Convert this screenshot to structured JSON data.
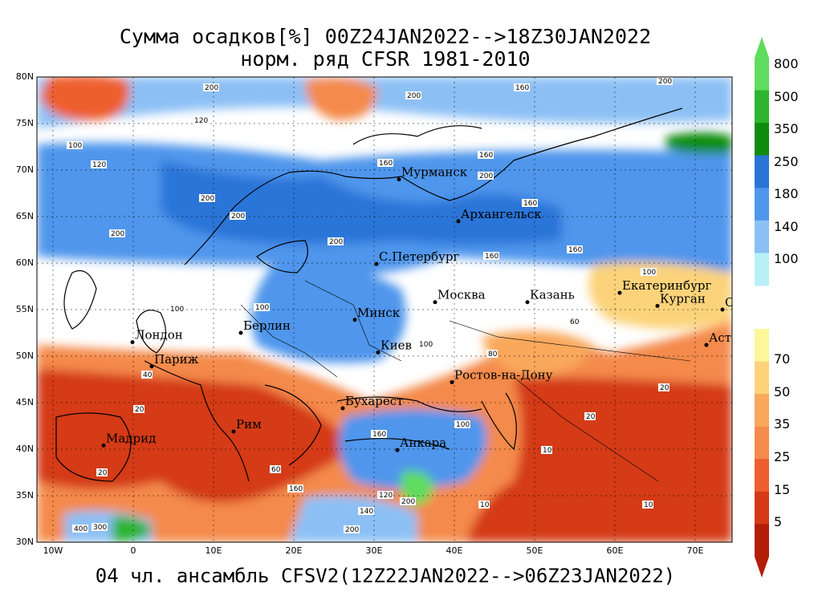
{
  "title": {
    "line1": "Сумма осадков[%] 00Z24JAN2022-->18Z30JAN2022",
    "line2": "норм. ряд CFSR 1981-2010"
  },
  "footer": "04 чл. ансамбль CFSV2(12Z22JAN2022-->06Z23JAN2022)",
  "map": {
    "lat_labels": [
      "80N",
      "75N",
      "70N",
      "65N",
      "60N",
      "55N",
      "50N",
      "45N",
      "40N",
      "35N",
      "30N"
    ],
    "lon_labels": [
      "10W",
      "0",
      "10E",
      "20E",
      "30E",
      "40E",
      "50E",
      "60E",
      "70E"
    ],
    "cities": [
      {
        "name": "Мурманск",
        "lon": 33.1,
        "lat": 69.0
      },
      {
        "name": "Архангельск",
        "lon": 40.5,
        "lat": 64.5
      },
      {
        "name": "С.Петербург",
        "lon": 30.3,
        "lat": 59.9
      },
      {
        "name": "Москва",
        "lon": 37.6,
        "lat": 55.8
      },
      {
        "name": "Казань",
        "lon": 49.1,
        "lat": 55.8
      },
      {
        "name": "Екатеринбург",
        "lon": 60.6,
        "lat": 56.8
      },
      {
        "name": "Курган",
        "lon": 65.3,
        "lat": 55.4
      },
      {
        "name": "Омск",
        "lon": 73.4,
        "lat": 55.0
      },
      {
        "name": "Астана",
        "lon": 71.4,
        "lat": 51.2
      },
      {
        "name": "Минск",
        "lon": 27.6,
        "lat": 53.9
      },
      {
        "name": "Берлин",
        "lon": 13.4,
        "lat": 52.5
      },
      {
        "name": "Лондон",
        "lon": -0.1,
        "lat": 51.5
      },
      {
        "name": "Париж",
        "lon": 2.3,
        "lat": 48.9
      },
      {
        "name": "Киев",
        "lon": 30.5,
        "lat": 50.4
      },
      {
        "name": "Ростов-на-Дону",
        "lon": 39.7,
        "lat": 47.2
      },
      {
        "name": "Бухарест",
        "lon": 26.1,
        "lat": 44.4
      },
      {
        "name": "Рим",
        "lon": 12.5,
        "lat": 41.9
      },
      {
        "name": "Мадрид",
        "lon": -3.7,
        "lat": 40.4
      },
      {
        "name": "Анкара",
        "lon": 32.9,
        "lat": 39.9
      }
    ],
    "contour_labels": [
      "10",
      "20",
      "40",
      "60",
      "80",
      "100",
      "120",
      "140",
      "160",
      "200",
      "300",
      "400"
    ]
  },
  "legend": {
    "top_bar": [
      {
        "label": "800",
        "color": "#5fdc5f"
      },
      {
        "label": "500",
        "color": "#2fb42f"
      },
      {
        "label": "350",
        "color": "#0f8c0f"
      },
      {
        "label": "250",
        "color": "#2a74d8"
      },
      {
        "label": "180",
        "color": "#4f96ec"
      },
      {
        "label": "140",
        "color": "#8cc0f5"
      },
      {
        "label": "100",
        "color": "#b8f0f8"
      }
    ],
    "bottom_bar": [
      {
        "label": "70",
        "color": "#fcf79a"
      },
      {
        "label": "50",
        "color": "#fcd37a"
      },
      {
        "label": "35",
        "color": "#f9a85c"
      },
      {
        "label": "25",
        "color": "#f48a4c"
      },
      {
        "label": "15",
        "color": "#ee5e2e"
      },
      {
        "label": "5",
        "color": "#d43a16"
      },
      {
        "label": "",
        "color": "#b21e08"
      }
    ]
  }
}
